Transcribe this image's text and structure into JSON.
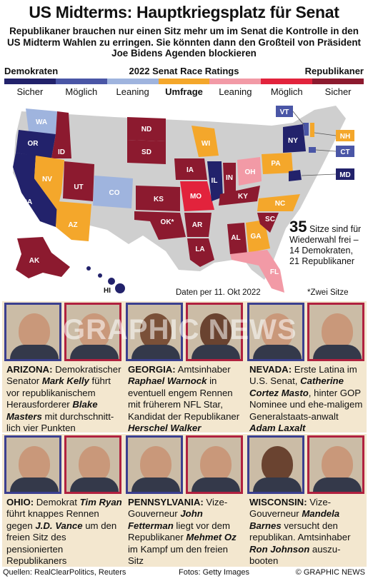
{
  "title": "US Midterms: Hauptkriegsplatz für Senat",
  "subtitle": "Republikaner brauchen nur einen Sitz mehr um im Senat die Kontrolle in den US Midterm Wahlen zu erringen. Sie könnten dann den Großteil von Präsident Joe Bidens Agenden blockieren",
  "legend": {
    "left_head": "Demokraten",
    "center_head": "2022 Senat Race Ratings",
    "right_head": "Republikaner",
    "categories": [
      {
        "label": "Sicher",
        "color": "#22226b"
      },
      {
        "label": "Möglich",
        "color": "#4a56a6"
      },
      {
        "label": "Leaning",
        "color": "#9fb4de"
      },
      {
        "label": "Umfrage",
        "color": "#f4a72b"
      },
      {
        "label": "Leaning",
        "color": "#f29aa6"
      },
      {
        "label": "Möglich",
        "color": "#e2233c"
      },
      {
        "label": "Sicher",
        "color": "#8c1a2f"
      }
    ]
  },
  "map": {
    "states": [
      {
        "id": "WA",
        "rating": "Leaning D"
      },
      {
        "id": "OR",
        "rating": "Sicher D"
      },
      {
        "id": "CA",
        "rating": "Sicher D"
      },
      {
        "id": "ID",
        "rating": "Sicher R"
      },
      {
        "id": "NV",
        "rating": "Umfrage"
      },
      {
        "id": "UT",
        "rating": "Sicher R"
      },
      {
        "id": "AZ",
        "rating": "Umfrage"
      },
      {
        "id": "CO",
        "rating": "Leaning D"
      },
      {
        "id": "ND",
        "rating": "Sicher R"
      },
      {
        "id": "SD",
        "rating": "Sicher R"
      },
      {
        "id": "KS",
        "rating": "Sicher R"
      },
      {
        "id": "OK*",
        "rating": "Sicher R"
      },
      {
        "id": "IA",
        "rating": "Sicher R"
      },
      {
        "id": "MO",
        "rating": "Möglich R"
      },
      {
        "id": "AR",
        "rating": "Sicher R"
      },
      {
        "id": "LA",
        "rating": "Sicher R"
      },
      {
        "id": "WI",
        "rating": "Umfrage"
      },
      {
        "id": "IL",
        "rating": "Sicher D"
      },
      {
        "id": "IN",
        "rating": "Sicher R"
      },
      {
        "id": "OH",
        "rating": "Leaning R"
      },
      {
        "id": "KY",
        "rating": "Sicher R"
      },
      {
        "id": "AL",
        "rating": "Sicher R"
      },
      {
        "id": "GA",
        "rating": "Umfrage"
      },
      {
        "id": "SC",
        "rating": "Sicher R"
      },
      {
        "id": "NC",
        "rating": "Umfrage"
      },
      {
        "id": "FL",
        "rating": "Leaning R"
      },
      {
        "id": "PA",
        "rating": "Umfrage"
      },
      {
        "id": "NY",
        "rating": "Sicher D"
      },
      {
        "id": "VT",
        "rating": "Möglich D"
      },
      {
        "id": "NH",
        "rating": "Umfrage"
      },
      {
        "id": "CT",
        "rating": "Möglich D"
      },
      {
        "id": "MD",
        "rating": "Sicher D"
      },
      {
        "id": "AK",
        "rating": "Sicher R"
      },
      {
        "id": "HI",
        "rating": "Sicher D"
      }
    ]
  },
  "seats": {
    "number": "35",
    "text": "Sitze sind für Wiederwahl frei – 14 Demokraten, 21 Republikaner"
  },
  "as_of": "Daten per 11. Okt 2022",
  "footnote": "*Zwei Sitze",
  "panels": [
    {
      "state": "ARIZONA:",
      "t1": " Demokratischer Senator ",
      "n1": "Mark Kelly",
      "t2": " führt vor republikanischem Herausforderer ",
      "n2": "Blake Masters",
      "t3": " mit durchschnitt-lich vier Punkten"
    },
    {
      "state": "GEORGIA:",
      "t1": " Amtsinhaber ",
      "n1": "Raphael Warnock",
      "t2": " in eventuell engem Rennen mit früherem NFL Star, Kandidat der Republikaner ",
      "n2": "Herschel Walker",
      "t3": ""
    },
    {
      "state": "NEVADA:",
      "t1": " Erste Latina im U.S. Senat, ",
      "n1": "Catherine Cortez Masto",
      "t2": ", hinter GOP Nominee und ehe-maligem Generalstaats-anwalt ",
      "n2": "Adam Laxalt",
      "t3": ""
    },
    {
      "state": "OHIO:",
      "t1": " Demokrat ",
      "n1": "Tim Ryan",
      "t2": " führt knappes Rennen gegen ",
      "n2": "J.D. Vance",
      "t3": " um den freien Sitz des pensionierten Republikaners"
    },
    {
      "state": "PENNSYLVANIA:",
      "t1": " Vize-Gouverneur ",
      "n1": "John Fetterman",
      "t2": " liegt vor dem Republikaner ",
      "n2": "Mehmet Oz",
      "t3": " im Kampf um den freien Sitz"
    },
    {
      "state": "WISCONSIN:",
      "t1": " Vize-Gouverneur ",
      "n1": "Mandela Barnes",
      "t2": " versucht den republikan. Amtsinhaber ",
      "n2": "Ron Johnson",
      "t3": " auszu-booten"
    }
  ],
  "watermark": "GRAPHIC NEWS",
  "sources": "Quellen: RealClearPolitics, Reuters",
  "photos_credit": "Fotos: Getty Images",
  "copyright": "© GRAPHIC NEWS"
}
